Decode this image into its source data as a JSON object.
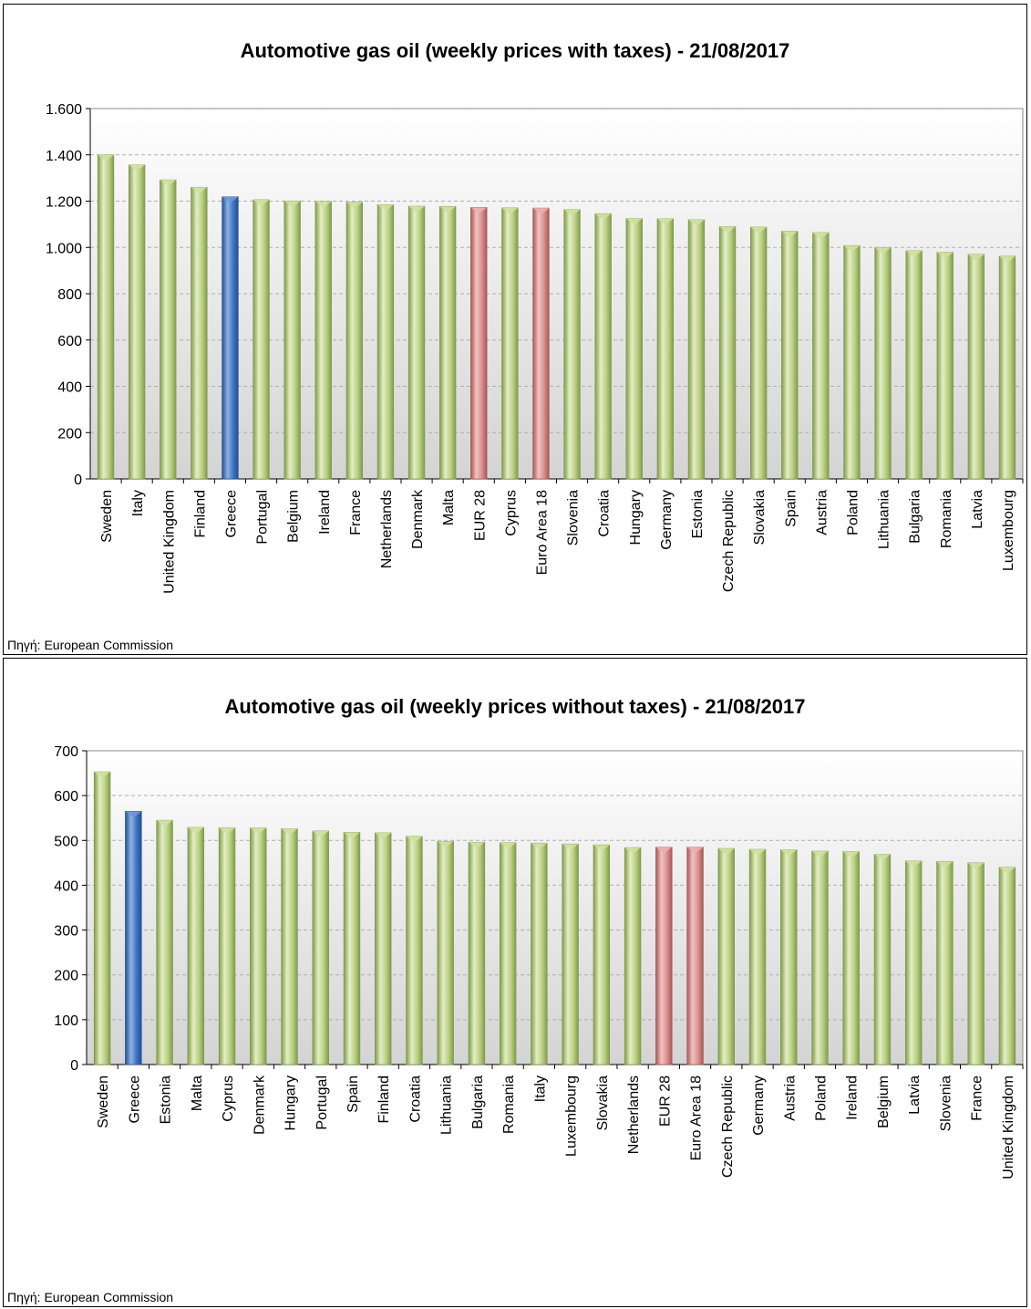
{
  "source_label": "Πηγή: European Commission",
  "colors": {
    "green": "#b8cf82",
    "blue": "#3e73c2",
    "red": "#d98e8c",
    "grid": "#b0b0b0"
  },
  "chart_data": [
    {
      "type": "bar",
      "title": "Automotive gas oil (weekly prices with taxes) - 21/08/2017",
      "xlabel": "",
      "ylabel": "",
      "ylim": [
        0,
        1600
      ],
      "yticks": [
        0,
        200,
        400,
        600,
        800,
        1000,
        1200,
        1400,
        1600
      ],
      "ytick_labels": [
        "0",
        "200",
        "400",
        "600",
        "800",
        "1.000",
        "1.200",
        "1.400",
        "1.600"
      ],
      "grid": true,
      "categories": [
        "Sweden",
        "Italy",
        "United Kingdom",
        "Finland",
        "Greece",
        "Portugal",
        "Belgium",
        "Ireland",
        "France",
        "Netherlands",
        "Denmark",
        "Malta",
        "EUR 28",
        "Cyprus",
        "Euro Area 18",
        "Slovenia",
        "Croatia",
        "Hungary",
        "Germany",
        "Estonia",
        "Czech Republic",
        "Slovakia",
        "Spain",
        "Austria",
        "Poland",
        "Lithuania",
        "Bulgaria",
        "Romania",
        "Latvia",
        "Luxembourg"
      ],
      "values": [
        1400,
        1357,
        1292,
        1260,
        1219,
        1206,
        1201,
        1199,
        1196,
        1185,
        1178,
        1177,
        1173,
        1171,
        1170,
        1164,
        1146,
        1125,
        1124,
        1120,
        1090,
        1088,
        1070,
        1064,
        1008,
        1000,
        986,
        979,
        970,
        962
      ]
    },
    {
      "type": "bar",
      "title": "Automotive gas oil (weekly prices without taxes) - 21/08/2017",
      "xlabel": "",
      "ylabel": "",
      "ylim": [
        0,
        700
      ],
      "yticks": [
        0,
        100,
        200,
        300,
        400,
        500,
        600,
        700
      ],
      "ytick_labels": [
        "0",
        "100",
        "200",
        "300",
        "400",
        "500",
        "600",
        "700"
      ],
      "grid": true,
      "categories": [
        "Sweden",
        "Greece",
        "Estonia",
        "Malta",
        "Cyprus",
        "Denmark",
        "Hungary",
        "Portugal",
        "Spain",
        "Finland",
        "Croatia",
        "Lithuania",
        "Bulgaria",
        "Romania",
        "Italy",
        "Luxembourg",
        "Slovakia",
        "Netherlands",
        "EUR 28",
        "Euro Area 18",
        "Czech Republic",
        "Germany",
        "Austria",
        "Poland",
        "Ireland",
        "Belgium",
        "Latvia",
        "Slovenia",
        "France",
        "United Kingdom"
      ],
      "values": [
        653,
        565,
        545,
        529,
        528,
        528,
        526,
        521,
        518,
        517,
        509,
        498,
        496,
        495,
        494,
        492,
        490,
        484,
        485,
        485,
        482,
        480,
        479,
        476,
        475,
        469,
        454,
        453,
        450,
        440
      ]
    }
  ]
}
